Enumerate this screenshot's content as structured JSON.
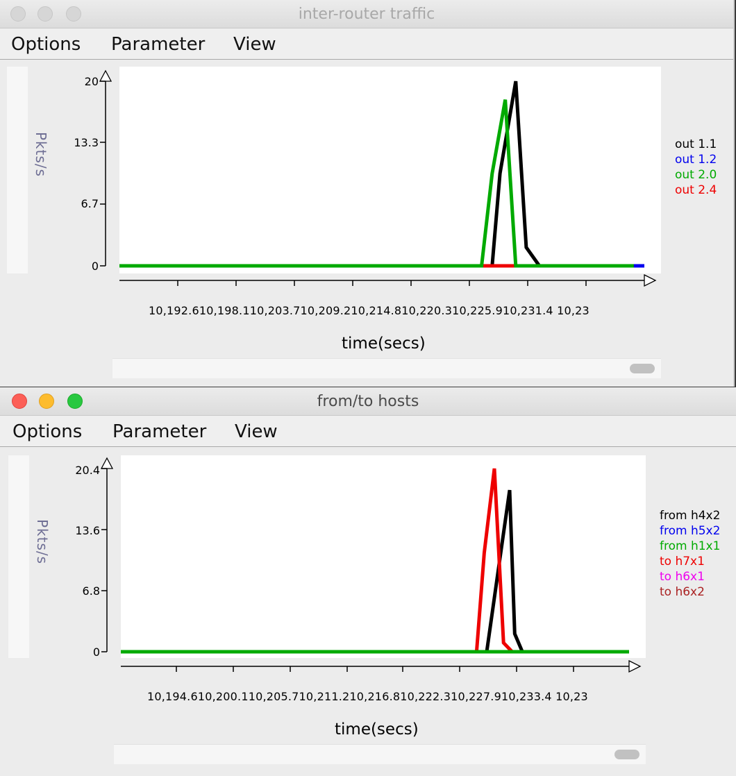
{
  "windows": [
    {
      "title": "inter-router traffic",
      "menus": [
        "Options",
        "Parameter",
        "View"
      ],
      "ylabel": "Pkts/s",
      "yticks": [
        "20",
        "13.3",
        "6.7",
        "0"
      ],
      "xticks": "10,192.610,198.110,203.710,209.210,214.810,220.310,225.910,231.4  10,23",
      "xlabel": "time(secs)",
      "legend": [
        {
          "label": "out 1.1",
          "color": "#000000"
        },
        {
          "label": "out 1.2",
          "color": "#0000ee"
        },
        {
          "label": "out 2.0",
          "color": "#00aa00"
        },
        {
          "label": "out 2.4",
          "color": "#ee0000"
        }
      ]
    },
    {
      "title": "from/to hosts",
      "menus": [
        "Options",
        "Parameter",
        "View"
      ],
      "ylabel": "Pkts/s",
      "yticks": [
        "20.4",
        "13.6",
        "6.8",
        "0"
      ],
      "xticks": "10,194.610,200.110,205.710,211.210,216.810,222.310,227.910,233.4  10,23",
      "xlabel": "time(secs)",
      "legend": [
        {
          "label": "from h4x2",
          "color": "#000000"
        },
        {
          "label": "from h5x2",
          "color": "#0000ee"
        },
        {
          "label": "from h1x1",
          "color": "#00aa00"
        },
        {
          "label": "to h7x1",
          "color": "#ee0000"
        },
        {
          "label": "to h6x1",
          "color": "#ee00ee"
        },
        {
          "label": "to h6x2",
          "color": "#aa2222"
        }
      ]
    }
  ],
  "chart_data": [
    {
      "type": "line",
      "ylabel": "Pkts/s",
      "xlabel": "time(secs)",
      "ylim": [
        0,
        20
      ],
      "series": [
        {
          "name": "out 1.1",
          "x": [
            0,
            0.69,
            0.71,
            0.725,
            0.755,
            0.775,
            0.8,
            1.0
          ],
          "y": [
            0,
            0,
            0,
            10,
            20,
            2,
            0,
            0
          ]
        },
        {
          "name": "out 2.4",
          "x": [
            0.69,
            0.725,
            0.755
          ],
          "y": [
            0,
            0,
            0
          ]
        },
        {
          "name": "out 2.0",
          "x": [
            0,
            0.69,
            0.71,
            0.735,
            0.755,
            0.8,
            0.98
          ],
          "y": [
            0,
            0,
            10,
            18,
            0,
            0,
            0
          ]
        },
        {
          "name": "out 1.2",
          "x": [
            0.98,
            1.0
          ],
          "y": [
            0,
            0
          ]
        }
      ]
    },
    {
      "type": "line",
      "ylabel": "Pkts/s",
      "xlabel": "time(secs)",
      "ylim": [
        0,
        20.4
      ],
      "series": [
        {
          "name": "from h4x2",
          "x": [
            0,
            0.72,
            0.745,
            0.765,
            0.775,
            0.79,
            1.0
          ],
          "y": [
            0,
            0,
            10,
            18,
            2,
            0,
            0
          ]
        },
        {
          "name": "to h7x1",
          "x": [
            0.7,
            0.715,
            0.735,
            0.753,
            0.77
          ],
          "y": [
            0,
            11,
            20.4,
            1,
            0
          ]
        },
        {
          "name": "from h1x1",
          "x": [
            0,
            1.0
          ],
          "y": [
            0,
            0
          ]
        }
      ]
    }
  ]
}
